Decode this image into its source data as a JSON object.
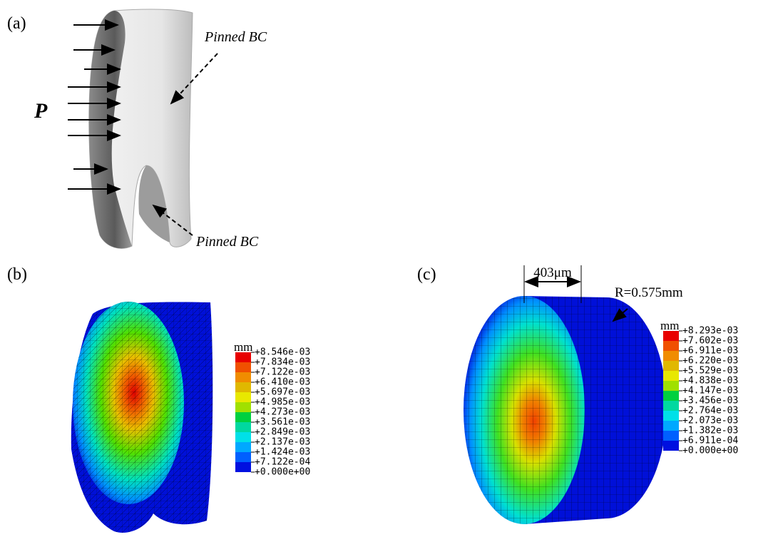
{
  "panel_a": {
    "label": "(a)",
    "load_label": "P",
    "bc_labels": [
      "Pinned BC",
      "Pinned BC"
    ]
  },
  "panel_b": {
    "label": "(b)",
    "legend": {
      "unit": "mm",
      "labels": [
        "+8.546e-03",
        "+7.834e-03",
        "+7.122e-03",
        "+6.410e-03",
        "+5.697e-03",
        "+4.985e-03",
        "+4.273e-03",
        "+3.561e-03",
        "+2.849e-03",
        "+2.137e-03",
        "+1.424e-03",
        "+7.122e-04",
        "+0.000e+00"
      ]
    }
  },
  "panel_c": {
    "label": "(c)",
    "dimension": "403μm",
    "radius": "R=0.575mm",
    "legend": {
      "unit": "mm",
      "labels": [
        "+8.293e-03",
        "+7.602e-03",
        "+6.911e-03",
        "+6.220e-03",
        "+5.529e-03",
        "+4.838e-03",
        "+4.147e-03",
        "+3.456e-03",
        "+2.764e-03",
        "+2.073e-03",
        "+1.382e-03",
        "+6.911e-04",
        "+0.000e+00"
      ]
    }
  }
}
